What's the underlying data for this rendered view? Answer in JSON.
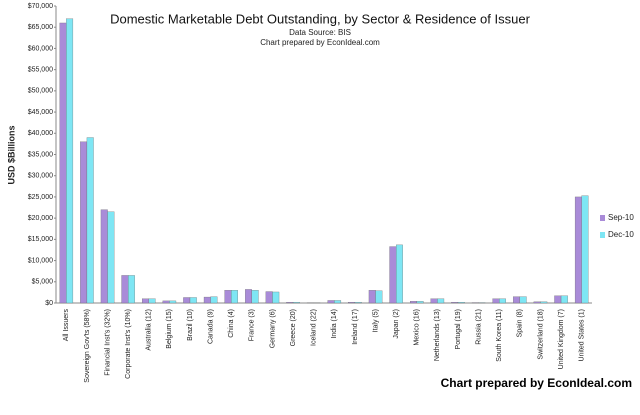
{
  "chart_data": {
    "type": "bar",
    "title": "Domestic Marketable Debt Outstanding, by Sector & Residence of Issuer",
    "subtitle": [
      "Data Source: BIS",
      "Chart prepared by EconIdeal.com"
    ],
    "credit": "Chart prepared by EconIdeal.com",
    "ylabel": "USD $Billions",
    "categories": [
      "All Issuers",
      "Sovereign Gov'ts (58%)",
      "Financial Inst's (32%)",
      "Corporate Inst's (10%)",
      "Australia (12)",
      "Belgium (15)",
      "Brazil (10)",
      "Canada (9)",
      "China (4)",
      "France (3)",
      "Germany (6)",
      "Greece (20)",
      "Iceland (22)",
      "India (14)",
      "Ireland (17)",
      "Italy (5)",
      "Japan (2)",
      "Mexico (16)",
      "Netherlands (13)",
      "Portugal (19)",
      "Russia (21)",
      "South Korea (11)",
      "Spain (8)",
      "Switzerland (18)",
      "United Kingdom (7)",
      "United States (1)"
    ],
    "series": [
      {
        "name": "Sep-10",
        "color": "#a98bd8",
        "values": [
          66000,
          38000,
          22000,
          6500,
          1000,
          500,
          1300,
          1400,
          3000,
          3200,
          2700,
          200,
          50,
          600,
          200,
          3000,
          13300,
          400,
          1000,
          200,
          100,
          1000,
          1500,
          300,
          1700,
          25000
        ]
      },
      {
        "name": "Dec-10",
        "color": "#7ee6f4",
        "values": [
          67000,
          39000,
          21500,
          6500,
          1000,
          500,
          1300,
          1500,
          3000,
          3000,
          2600,
          200,
          50,
          600,
          200,
          2900,
          13700,
          400,
          1000,
          200,
          100,
          1000,
          1500,
          300,
          1700,
          25300
        ]
      }
    ],
    "ylim": [
      0,
      70000
    ],
    "yticks": [
      {
        "value": 0,
        "label": "$0"
      },
      {
        "value": 5000,
        "label": "$5,000"
      },
      {
        "value": 10000,
        "label": "$10,000"
      },
      {
        "value": 15000,
        "label": "$15,000"
      },
      {
        "value": 20000,
        "label": "$20,000"
      },
      {
        "value": 25000,
        "label": "$25,000"
      },
      {
        "value": 30000,
        "label": "$30,000"
      },
      {
        "value": 35000,
        "label": "$35,000"
      },
      {
        "value": 40000,
        "label": "$40,000"
      },
      {
        "value": 45000,
        "label": "$45,000"
      },
      {
        "value": 50000,
        "label": "$50,000"
      },
      {
        "value": 55000,
        "label": "$55,000"
      },
      {
        "value": 60000,
        "label": "$60,000"
      },
      {
        "value": 65000,
        "label": "$65,000"
      },
      {
        "value": 70000,
        "label": "$70,000"
      }
    ],
    "grid": false,
    "legend": "right"
  }
}
